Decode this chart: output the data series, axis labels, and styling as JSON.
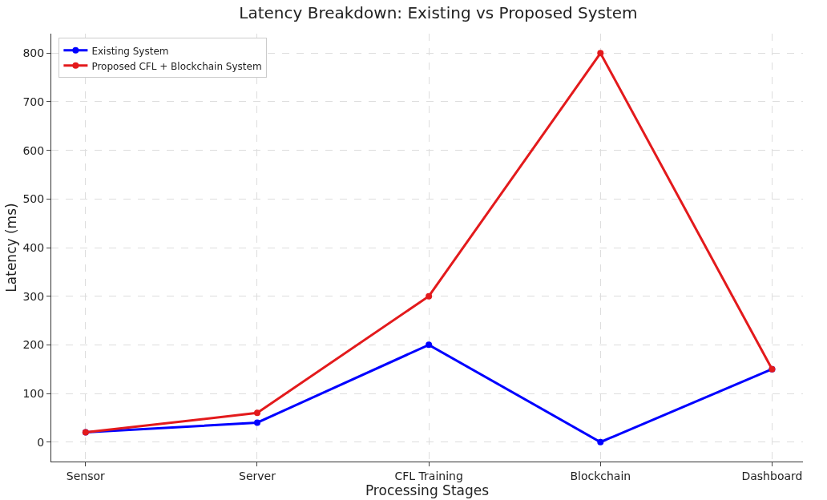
{
  "chart_data": {
    "type": "line",
    "title": "Latency Breakdown: Existing vs Proposed System",
    "xlabel": "Processing Stages",
    "ylabel": "Latency (ms)",
    "categories": [
      "Sensor",
      "Server",
      "CFL Training",
      "Blockchain",
      "Dashboard"
    ],
    "series": [
      {
        "name": "Existing System",
        "color": "#0000ff",
        "values": [
          20,
          40,
          200,
          0,
          150
        ]
      },
      {
        "name": "Proposed CFL + Blockchain System",
        "color": "#e31a1c",
        "values": [
          20,
          60,
          300,
          800,
          150
        ]
      }
    ],
    "ylim": [
      -40,
      840
    ],
    "yticks": [
      0,
      100,
      200,
      300,
      400,
      500,
      600,
      700,
      800
    ],
    "grid": true,
    "legend": "top left",
    "marker": "circle",
    "line_style": "solid"
  }
}
